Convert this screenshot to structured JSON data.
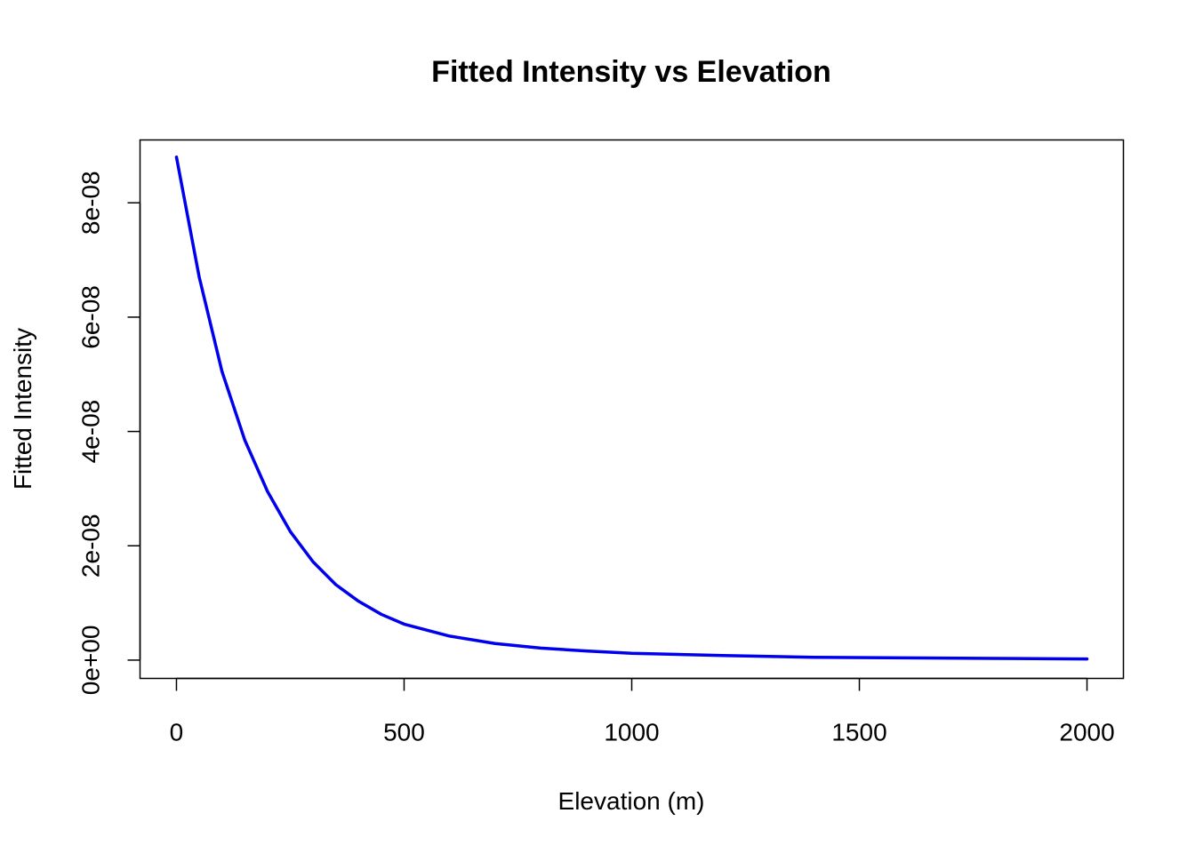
{
  "chart_data": {
    "type": "line",
    "title": "Fitted Intensity vs Elevation",
    "xlabel": "Elevation (m)",
    "ylabel": "Fitted Intensity",
    "xlim": [
      -80,
      2080
    ],
    "ylim": [
      -3.2e-09,
      9.1e-08
    ],
    "x_ticks": [
      0,
      500,
      1000,
      1500,
      2000
    ],
    "x_tick_labels": [
      "0",
      "500",
      "1000",
      "1500",
      "2000"
    ],
    "y_ticks": [
      0,
      2e-08,
      4e-08,
      6e-08,
      8e-08
    ],
    "y_tick_labels": [
      "0e+00",
      "2e-08",
      "4e-08",
      "6e-08",
      "8e-08"
    ],
    "grid": false,
    "series": [
      {
        "color": "#0000ee",
        "x": [
          0,
          50,
          100,
          150,
          200,
          250,
          300,
          350,
          400,
          450,
          500,
          600,
          700,
          800,
          900,
          1000,
          1200,
          1400,
          1600,
          1800,
          2000
        ],
        "y": [
          8.8e-08,
          6.7e-08,
          5.05e-08,
          3.85e-08,
          2.95e-08,
          2.25e-08,
          1.72e-08,
          1.32e-08,
          1.03e-08,
          8e-09,
          6.3e-09,
          4.2e-09,
          2.9e-09,
          2.1e-09,
          1.6e-09,
          1.2e-09,
          8e-10,
          5e-10,
          4e-10,
          3e-10,
          2e-10
        ]
      }
    ]
  }
}
